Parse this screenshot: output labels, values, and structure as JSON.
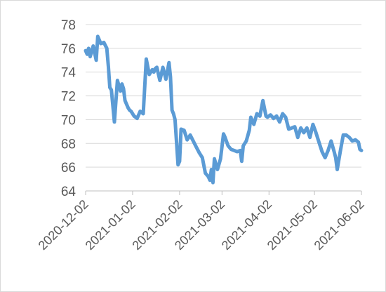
{
  "chart_data": {
    "type": "line",
    "title": "",
    "xlabel": "",
    "ylabel": "",
    "ylim": [
      64,
      78
    ],
    "xlim": [
      "2020-12-02",
      "2021-06-02"
    ],
    "grid": "horizontal",
    "yticks": [
      64,
      66,
      68,
      70,
      72,
      74,
      76,
      78
    ],
    "xticks": [
      "2020-12-02",
      "2021-01-02",
      "2021-02-02",
      "2021-03-02",
      "2021-04-02",
      "2021-05-02",
      "2021-06-02"
    ],
    "line_color": "#5b9bd5",
    "series": [
      {
        "x": [
          "2020-12-02",
          "2020-12-03",
          "2020-12-04",
          "2020-12-05",
          "2020-12-07",
          "2020-12-09",
          "2020-12-10",
          "2020-12-12",
          "2020-12-14",
          "2020-12-16",
          "2020-12-17",
          "2020-12-18",
          "2020-12-19",
          "2020-12-21",
          "2020-12-23",
          "2020-12-25",
          "2020-12-26",
          "2020-12-27",
          "2020-12-28",
          "2020-12-29",
          "2020-12-30",
          "2020-12-31",
          "2021-01-01",
          "2021-01-03",
          "2021-01-05",
          "2021-01-07",
          "2021-01-09",
          "2021-01-11",
          "2021-01-13",
          "2021-01-15",
          "2021-01-16",
          "2021-01-17",
          "2021-01-18",
          "2021-01-20",
          "2021-01-22",
          "2021-01-24",
          "2021-01-26",
          "2021-01-27",
          "2021-01-28",
          "2021-01-29",
          "2021-01-30",
          "2021-02-01",
          "2021-02-02",
          "2021-02-03",
          "2021-02-05",
          "2021-02-07",
          "2021-02-09",
          "2021-02-11",
          "2021-02-13",
          "2021-02-15",
          "2021-02-17",
          "2021-02-19",
          "2021-02-21",
          "2021-02-22",
          "2021-02-23",
          "2021-02-24",
          "2021-02-25",
          "2021-02-27",
          "2021-03-01",
          "2021-03-03",
          "2021-03-04",
          "2021-03-06",
          "2021-03-08",
          "2021-03-10",
          "2021-03-12",
          "2021-03-14",
          "2021-03-15",
          "2021-03-16",
          "2021-03-18",
          "2021-03-20",
          "2021-03-21",
          "2021-03-23",
          "2021-03-25",
          "2021-03-27",
          "2021-03-29",
          "2021-03-31",
          "2021-04-01",
          "2021-04-03",
          "2021-04-05",
          "2021-04-07",
          "2021-04-09",
          "2021-04-11",
          "2021-04-13",
          "2021-04-15",
          "2021-04-17",
          "2021-04-19",
          "2021-04-21",
          "2021-04-23",
          "2021-04-25",
          "2021-04-27",
          "2021-04-29",
          "2021-05-01",
          "2021-05-03",
          "2021-05-05",
          "2021-05-07",
          "2021-05-09",
          "2021-05-11",
          "2021-05-13",
          "2021-05-15",
          "2021-05-16",
          "2021-05-17",
          "2021-05-19",
          "2021-05-21",
          "2021-05-23",
          "2021-05-25",
          "2021-05-27",
          "2021-05-29",
          "2021-05-31",
          "2021-06-01",
          "2021-06-02"
        ],
        "y": [
          75.8,
          75.5,
          76.0,
          75.3,
          76.2,
          75.0,
          77.0,
          76.4,
          76.5,
          76.0,
          74.5,
          72.7,
          72.5,
          69.8,
          73.3,
          72.4,
          73.0,
          72.6,
          71.6,
          71.3,
          71.0,
          70.8,
          70.7,
          70.3,
          70.1,
          70.7,
          70.5,
          75.1,
          73.8,
          74.2,
          74.0,
          74.3,
          74.4,
          73.3,
          74.4,
          73.4,
          74.8,
          73.6,
          70.8,
          70.5,
          70.0,
          66.2,
          66.5,
          69.2,
          69.1,
          68.3,
          68.7,
          68.2,
          67.7,
          67.2,
          66.8,
          65.5,
          65.2,
          64.9,
          65.8,
          64.7,
          66.7,
          65.8,
          66.7,
          68.8,
          68.5,
          67.8,
          67.5,
          67.4,
          67.3,
          67.4,
          66.5,
          67.8,
          68.2,
          69.1,
          70.2,
          69.6,
          70.5,
          70.3,
          71.6,
          70.3,
          70.2,
          70.4,
          70.1,
          70.3,
          69.8,
          70.5,
          70.2,
          69.2,
          69.3,
          69.4,
          68.5,
          69.3,
          68.9,
          69.3,
          68.5,
          69.6,
          68.9,
          68.1,
          67.3,
          66.8,
          67.4,
          68.2,
          67.3,
          66.8,
          65.8,
          67.3,
          68.7,
          68.7,
          68.5,
          68.2,
          68.3,
          68.1,
          67.5,
          67.4
        ]
      }
    ]
  }
}
